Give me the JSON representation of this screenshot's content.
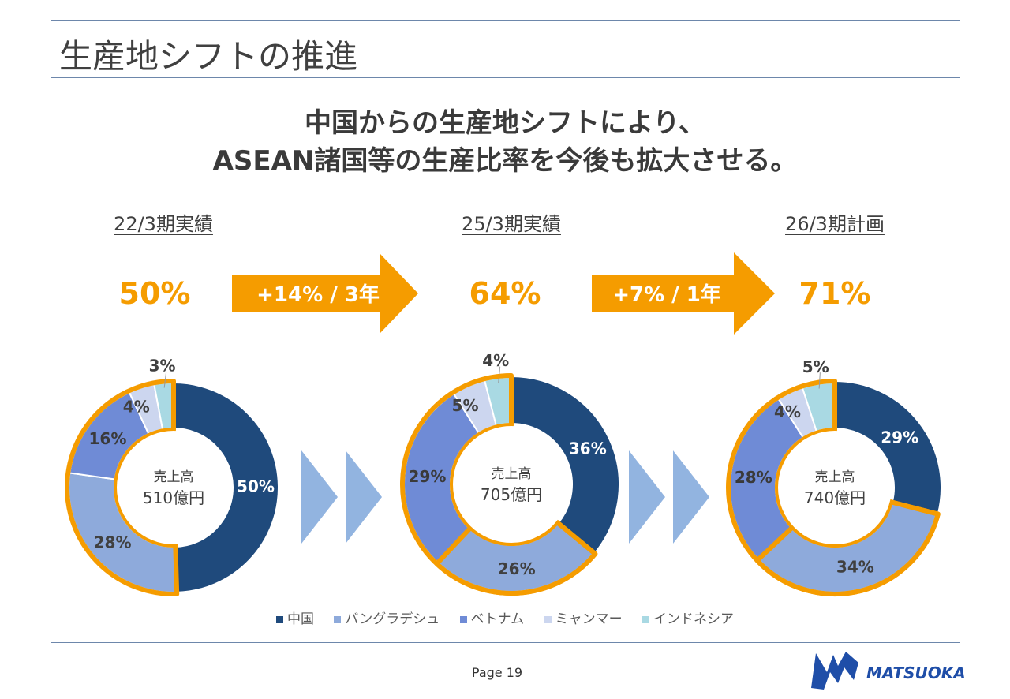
{
  "title": "生産地シフトの推進",
  "subtitle": {
    "line1": "中国からの生産地シフトにより、",
    "line2": "ASEAN諸国等の生産比率を今後も拡大させる。"
  },
  "periods": [
    "22/3期実績",
    "25/3期実績",
    "26/3期計画"
  ],
  "shift_percentages": [
    "50%",
    "64%",
    "71%"
  ],
  "arrows": [
    "+14% / 3年",
    "+7% / 1年"
  ],
  "colors": {
    "中国": "#1f4a7c",
    "バングラデシュ": "#8eaadb",
    "ベトナム": "#6f8bd6",
    "ミャンマー": "#ccd6ef",
    "インドネシア": "#a9d9e3",
    "accent": "#f59c00",
    "chevron": "#92b4e0"
  },
  "legend": [
    "中国",
    "バングラデシュ",
    "ベトナム",
    "ミャンマー",
    "インドネシア"
  ],
  "chart_data": [
    {
      "type": "pie",
      "title": "22/3期実績",
      "center_label": "売上高",
      "center_value": "510億円",
      "categories": [
        "中国",
        "バングラデシュ",
        "ベトナム",
        "ミャンマー",
        "インドネシア"
      ],
      "values": [
        50,
        28,
        16,
        4,
        3
      ],
      "labels": [
        "50%",
        "28%",
        "16%",
        "4%",
        "3%"
      ]
    },
    {
      "type": "pie",
      "title": "25/3期実績",
      "center_label": "売上高",
      "center_value": "705億円",
      "categories": [
        "中国",
        "バングラデシュ",
        "ベトナム",
        "ミャンマー",
        "インドネシア"
      ],
      "values": [
        36,
        26,
        29,
        5,
        4
      ],
      "labels": [
        "36%",
        "26%",
        "29%",
        "5%",
        "4%"
      ]
    },
    {
      "type": "pie",
      "title": "26/3期計画",
      "center_label": "売上高",
      "center_value": "740億円",
      "categories": [
        "中国",
        "バングラデシュ",
        "ベトナム",
        "ミャンマー",
        "インドネシア"
      ],
      "values": [
        29,
        34,
        28,
        4,
        5
      ],
      "labels": [
        "29%",
        "34%",
        "28%",
        "4%",
        "5%"
      ]
    }
  ],
  "page": "Page 19",
  "logo_text": "MATSUOKA"
}
